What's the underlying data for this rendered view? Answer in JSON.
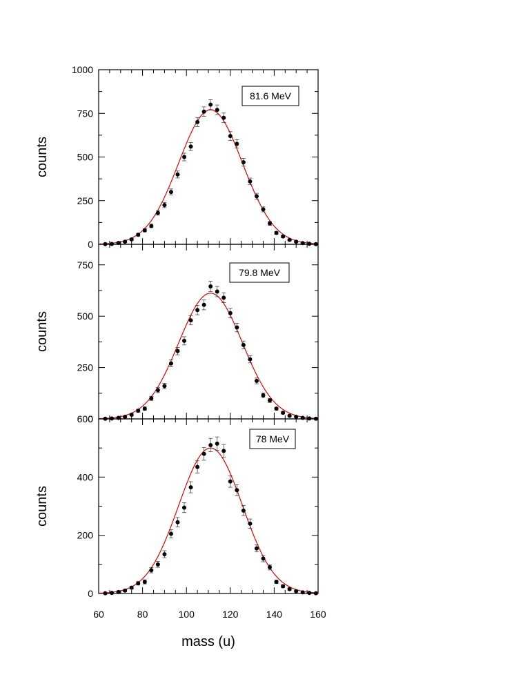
{
  "chart_data": [
    {
      "type": "scatter",
      "panel_label": "81.6 MeV",
      "xlabel": "",
      "ylabel": "counts",
      "xlim": [
        60,
        160
      ],
      "ylim": [
        0,
        1000
      ],
      "yticks": [
        0,
        250,
        500,
        750,
        1000
      ],
      "grid": false,
      "series": [
        {
          "kind": "points_with_error_bars",
          "color": "#000000",
          "x": [
            63,
            66,
            69,
            72,
            75,
            78,
            81,
            84,
            87,
            90,
            93,
            96,
            99,
            102,
            105,
            108,
            111,
            114,
            117,
            120,
            123,
            126,
            129,
            132,
            135,
            138,
            141,
            144,
            147,
            150,
            153,
            156,
            159
          ],
          "y": [
            1,
            2,
            8,
            15,
            28,
            55,
            80,
            105,
            180,
            225,
            300,
            400,
            500,
            560,
            700,
            760,
            800,
            770,
            725,
            620,
            575,
            470,
            360,
            275,
            200,
            120,
            65,
            45,
            25,
            15,
            7,
            3,
            1
          ],
          "yerr": [
            1,
            2,
            3,
            4,
            6,
            8,
            9,
            10,
            13,
            15,
            17,
            20,
            22,
            23,
            26,
            27,
            28,
            28,
            27,
            25,
            24,
            22,
            19,
            17,
            14,
            11,
            8,
            7,
            5,
            4,
            3,
            2,
            1
          ]
        },
        {
          "kind": "fit_curve",
          "color": "#e00000",
          "model": "gaussian",
          "amplitude": 770,
          "center": 111,
          "sigma": 14.5
        }
      ]
    },
    {
      "type": "scatter",
      "panel_label": "79.8 MeV",
      "xlabel": "",
      "ylabel": "counts",
      "xlim": [
        60,
        160
      ],
      "ylim": [
        0,
        850
      ],
      "yticks": [
        0,
        250,
        500,
        750
      ],
      "grid": false,
      "series": [
        {
          "kind": "points_with_error_bars",
          "color": "#000000",
          "x": [
            63,
            66,
            69,
            72,
            75,
            78,
            81,
            84,
            87,
            90,
            93,
            96,
            99,
            102,
            105,
            108,
            111,
            114,
            117,
            120,
            123,
            126,
            129,
            132,
            135,
            138,
            141,
            144,
            147,
            150,
            153,
            156,
            159
          ],
          "y": [
            1,
            2,
            5,
            10,
            20,
            40,
            50,
            100,
            140,
            160,
            270,
            330,
            380,
            480,
            530,
            555,
            645,
            620,
            590,
            515,
            445,
            360,
            290,
            185,
            115,
            90,
            50,
            30,
            15,
            10,
            5,
            2,
            1
          ],
          "yerr": [
            1,
            2,
            3,
            4,
            5,
            7,
            8,
            10,
            12,
            13,
            17,
            18,
            20,
            22,
            23,
            24,
            25,
            25,
            24,
            23,
            21,
            19,
            17,
            14,
            11,
            10,
            7,
            6,
            4,
            3,
            3,
            2,
            1
          ]
        },
        {
          "kind": "fit_curve",
          "color": "#e00000",
          "model": "gaussian",
          "amplitude": 612,
          "center": 111,
          "sigma": 14.5
        }
      ]
    },
    {
      "type": "scatter",
      "panel_label": "78 MeV",
      "xlabel": "mass (u)",
      "ylabel": "counts",
      "xlim": [
        60,
        160
      ],
      "ylim": [
        0,
        600
      ],
      "yticks": [
        0,
        200,
        400,
        600
      ],
      "xticks": [
        60,
        80,
        100,
        120,
        140,
        160
      ],
      "grid": false,
      "series": [
        {
          "kind": "points_with_error_bars",
          "color": "#000000",
          "x": [
            63,
            66,
            69,
            72,
            75,
            78,
            81,
            84,
            87,
            90,
            93,
            96,
            99,
            102,
            105,
            108,
            111,
            114,
            117,
            120,
            123,
            126,
            129,
            132,
            135,
            138,
            141,
            144,
            147,
            150,
            153,
            156,
            159
          ],
          "y": [
            1,
            2,
            5,
            10,
            20,
            35,
            40,
            80,
            100,
            135,
            205,
            245,
            295,
            365,
            435,
            480,
            510,
            515,
            490,
            385,
            355,
            285,
            240,
            155,
            120,
            90,
            40,
            25,
            15,
            8,
            4,
            2,
            1
          ],
          "yerr": [
            1,
            2,
            3,
            4,
            5,
            6,
            7,
            9,
            10,
            12,
            14,
            16,
            17,
            19,
            21,
            22,
            23,
            23,
            22,
            20,
            19,
            17,
            16,
            12,
            11,
            9,
            6,
            5,
            4,
            3,
            2,
            2,
            1
          ]
        },
        {
          "kind": "fit_curve",
          "color": "#e00000",
          "model": "gaussian",
          "amplitude": 500,
          "center": 111,
          "sigma": 14.5
        }
      ]
    }
  ]
}
